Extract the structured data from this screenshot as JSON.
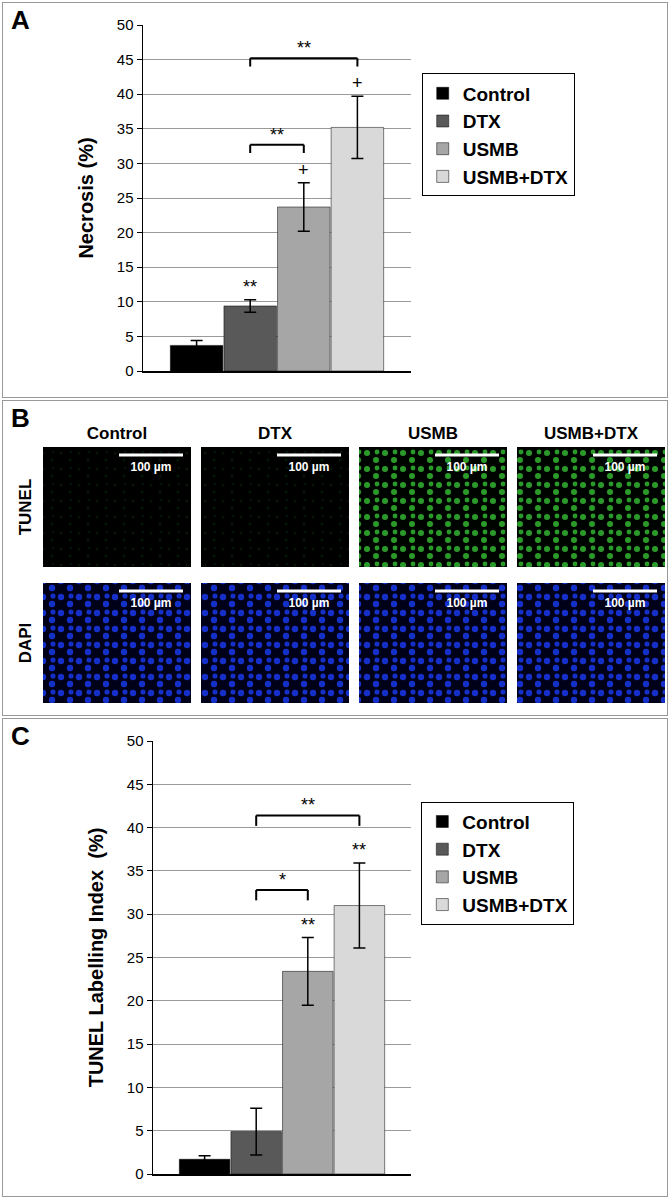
{
  "chart_data": [
    {
      "panel": "A",
      "type": "bar",
      "y_label": "Necrosis (%)",
      "categories": [
        "Control",
        "DTX",
        "USMB",
        "USMB+DTX"
      ],
      "values": [
        3.7,
        9.4,
        23.7,
        35.2
      ],
      "errors": [
        0.7,
        0.9,
        3.5,
        4.5
      ],
      "colors": [
        "#000000",
        "#595959",
        "#a6a6a6",
        "#d9d9d9"
      ],
      "ylim": [
        0,
        50
      ],
      "yticks": [
        0,
        5,
        10,
        15,
        20,
        25,
        30,
        35,
        40,
        45,
        50
      ],
      "grid": true,
      "legend": "right",
      "tick_labels": "y",
      "marks": [
        {
          "x": 1,
          "text": "**"
        },
        {
          "x": 2,
          "text": "+"
        },
        {
          "x": 3,
          "text": "+"
        }
      ],
      "brackets": [
        {
          "from": 1,
          "to": 2,
          "text": "**"
        },
        {
          "from": 1,
          "to": 3,
          "text": "**"
        }
      ]
    },
    {
      "panel": "C",
      "type": "bar",
      "y_label": "TUNEL Labelling Index  (%)",
      "categories": [
        "Control",
        "DTX",
        "USMB",
        "USMB+DTX"
      ],
      "values": [
        1.7,
        4.9,
        23.4,
        31.0
      ],
      "errors": [
        0.4,
        2.7,
        3.9,
        4.9
      ],
      "colors": [
        "#000000",
        "#595959",
        "#a6a6a6",
        "#d9d9d9"
      ],
      "ylim": [
        0,
        50
      ],
      "yticks": [
        0,
        5,
        10,
        15,
        20,
        25,
        30,
        35,
        40,
        45,
        50
      ],
      "grid": true,
      "legend": "right",
      "tick_labels": "y",
      "marks": [
        {
          "x": 2,
          "text": "**"
        },
        {
          "x": 3,
          "text": "**"
        }
      ],
      "brackets": [
        {
          "from": 1,
          "to": 2,
          "text": "*"
        },
        {
          "from": 1,
          "to": 3,
          "text": "**"
        }
      ]
    }
  ],
  "image_panel": {
    "panel": "B",
    "columns": [
      "Control",
      "DTX",
      "USMB",
      "USMB+DTX"
    ],
    "rows": [
      "TUNEL",
      "DAPI"
    ],
    "scale_bar": "100 µm"
  }
}
